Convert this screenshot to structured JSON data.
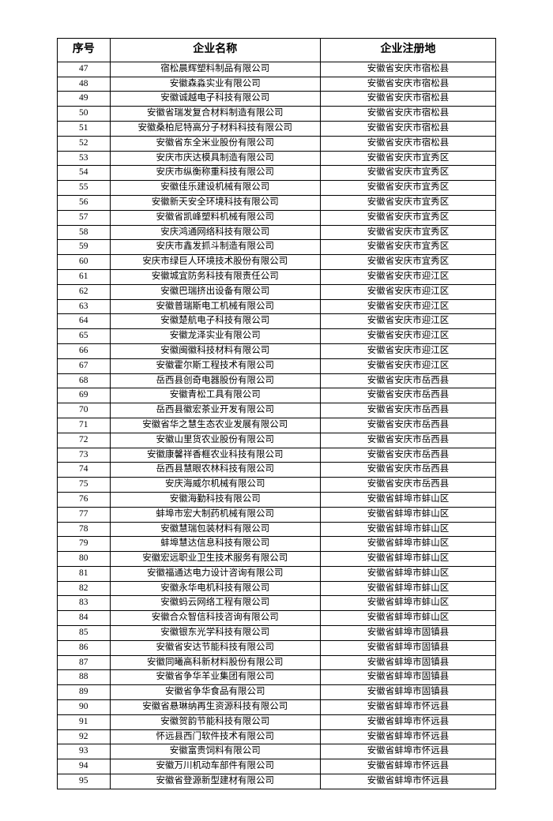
{
  "table": {
    "columns": [
      "序号",
      "企业名称",
      "企业注册地"
    ],
    "rows": [
      [
        "47",
        "宿松晨辉塑料制品有限公司",
        "安徽省安庆市宿松县"
      ],
      [
        "48",
        "安徽森淼实业有限公司",
        "安徽省安庆市宿松县"
      ],
      [
        "49",
        "安徽诚越电子科技有限公司",
        "安徽省安庆市宿松县"
      ],
      [
        "50",
        "安徽省瑞发复合材料制造有限公司",
        "安徽省安庆市宿松县"
      ],
      [
        "51",
        "安徽桑柏尼特高分子材料科技有限公司",
        "安徽省安庆市宿松县"
      ],
      [
        "52",
        "安徽省东全米业股份有限公司",
        "安徽省安庆市宿松县"
      ],
      [
        "53",
        "安庆市庆达模具制造有限公司",
        "安徽省安庆市宜秀区"
      ],
      [
        "54",
        "安庆市纵衡称重科技有限公司",
        "安徽省安庆市宜秀区"
      ],
      [
        "55",
        "安徽佳乐建设机械有限公司",
        "安徽省安庆市宜秀区"
      ],
      [
        "56",
        "安徽新天安全环境科技有限公司",
        "安徽省安庆市宜秀区"
      ],
      [
        "57",
        "安徽省凯峰塑料机械有限公司",
        "安徽省安庆市宜秀区"
      ],
      [
        "58",
        "安庆鸿通网络科技有限公司",
        "安徽省安庆市宜秀区"
      ],
      [
        "59",
        "安庆市鑫发抓斗制造有限公司",
        "安徽省安庆市宜秀区"
      ],
      [
        "60",
        "安庆市绿巨人环境技术股份有限公司",
        "安徽省安庆市宜秀区"
      ],
      [
        "61",
        "安徽城宜防务科技有限责任公司",
        "安徽省安庆市迎江区"
      ],
      [
        "62",
        "安徽巴瑞挤出设备有限公司",
        "安徽省安庆市迎江区"
      ],
      [
        "63",
        "安徽普瑞斯电工机械有限公司",
        "安徽省安庆市迎江区"
      ],
      [
        "64",
        "安徽楚航电子科技有限公司",
        "安徽省安庆市迎江区"
      ],
      [
        "65",
        "安徽龙泽实业有限公司",
        "安徽省安庆市迎江区"
      ],
      [
        "66",
        "安徽闽徽科技材料有限公司",
        "安徽省安庆市迎江区"
      ],
      [
        "67",
        "安徽霍尔斯工程技术有限公司",
        "安徽省安庆市迎江区"
      ],
      [
        "68",
        "岳西县创奇电器股份有限公司",
        "安徽省安庆市岳西县"
      ],
      [
        "69",
        "安徽青松工具有限公司",
        "安徽省安庆市岳西县"
      ],
      [
        "70",
        "岳西县徽宏茶业开发有限公司",
        "安徽省安庆市岳西县"
      ],
      [
        "71",
        "安徽省华之慧生态农业发展有限公司",
        "安徽省安庆市岳西县"
      ],
      [
        "72",
        "安徽山里货农业股份有限公司",
        "安徽省安庆市岳西县"
      ],
      [
        "73",
        "安徽康馨祥香榧农业科技有限公司",
        "安徽省安庆市岳西县"
      ],
      [
        "74",
        "岳西县慧眼农林科技有限公司",
        "安徽省安庆市岳西县"
      ],
      [
        "75",
        "安庆海威尔机械有限公司",
        "安徽省安庆市岳西县"
      ],
      [
        "76",
        "安徽海勤科技有限公司",
        "安徽省蚌埠市蚌山区"
      ],
      [
        "77",
        "蚌埠市宏大制药机械有限公司",
        "安徽省蚌埠市蚌山区"
      ],
      [
        "78",
        "安徽慧瑞包装材料有限公司",
        "安徽省蚌埠市蚌山区"
      ],
      [
        "79",
        "蚌埠慧达信息科技有限公司",
        "安徽省蚌埠市蚌山区"
      ],
      [
        "80",
        "安徽宏远职业卫生技术服务有限公司",
        "安徽省蚌埠市蚌山区"
      ],
      [
        "81",
        "安徽福通达电力设计咨询有限公司",
        "安徽省蚌埠市蚌山区"
      ],
      [
        "82",
        "安徽永华电机科技有限公司",
        "安徽省蚌埠市蚌山区"
      ],
      [
        "83",
        "安徽蚂云网络工程有限公司",
        "安徽省蚌埠市蚌山区"
      ],
      [
        "84",
        "安徽合众智信科技咨询有限公司",
        "安徽省蚌埠市蚌山区"
      ],
      [
        "85",
        "安徽银东光学科技有限公司",
        "安徽省蚌埠市固镇县"
      ],
      [
        "86",
        "安徽省安达节能科技有限公司",
        "安徽省蚌埠市固镇县"
      ],
      [
        "87",
        "安徽同曦高科新材料股份有限公司",
        "安徽省蚌埠市固镇县"
      ],
      [
        "88",
        "安徽省争华羊业集团有限公司",
        "安徽省蚌埠市固镇县"
      ],
      [
        "89",
        "安徽省争华食品有限公司",
        "安徽省蚌埠市固镇县"
      ],
      [
        "90",
        "安徽省悬琳纳再生资源科技有限公司",
        "安徽省蚌埠市怀远县"
      ],
      [
        "91",
        "安徽贺韵节能科技有限公司",
        "安徽省蚌埠市怀远县"
      ],
      [
        "92",
        "怀远县西门软件技术有限公司",
        "安徽省蚌埠市怀远县"
      ],
      [
        "93",
        "安徽富贵饲料有限公司",
        "安徽省蚌埠市怀远县"
      ],
      [
        "94",
        "安徽万川机动车部件有限公司",
        "安徽省蚌埠市怀远县"
      ],
      [
        "95",
        "安徽省登源新型建材有限公司",
        "安徽省蚌埠市怀远县"
      ]
    ]
  }
}
